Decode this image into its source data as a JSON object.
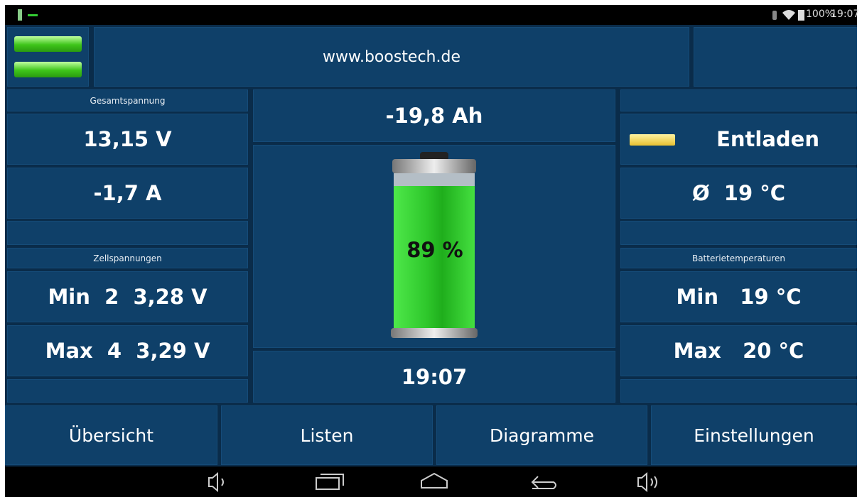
{
  "status_bar": {
    "battery": "100%",
    "time": "19:07"
  },
  "header": {
    "url": "www.boostech.de"
  },
  "left": {
    "total_label": "Gesamtspannung",
    "total_voltage": "13,15 V",
    "current": "-1,7 A",
    "cells_label": "Zellspannungen",
    "cell_min": "Min  2  3,28 V",
    "cell_max": "Max  4  3,29 V"
  },
  "center": {
    "capacity": "-19,8 Ah",
    "level": "89 %",
    "time": "19:07"
  },
  "right": {
    "state": "Entladen",
    "avg_temp": "Ø  19 °C",
    "temps_label": "Batterietemperaturen",
    "temp_min": "Min   19 °C",
    "temp_max": "Max   20 °C"
  },
  "tabs": [
    "Übersicht",
    "Listen",
    "Diagramme",
    "Einstellungen"
  ]
}
